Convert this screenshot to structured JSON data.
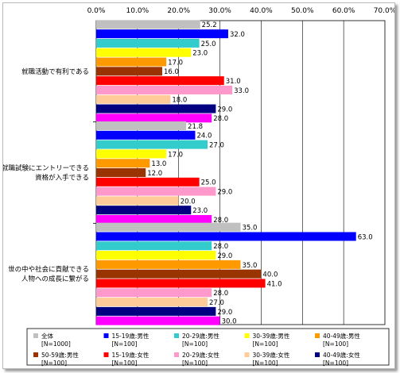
{
  "chart_data": {
    "type": "bar",
    "orientation": "horizontal",
    "xlim": [
      0,
      70
    ],
    "x_ticks": [
      "0.0%",
      "10.0%",
      "20.0%",
      "30.0%",
      "40.0%",
      "50.0%",
      "60.0%",
      "70.0%"
    ],
    "grid": true,
    "legend_position": "bottom",
    "categories": [
      {
        "label_lines": [
          "就職活動で有利である"
        ]
      },
      {
        "label_lines": [
          "就職試験にエントリーできる",
          "資格が入手できる"
        ]
      },
      {
        "label_lines": [
          "世の中や社会に貢献できる",
          "人物への成長に繋がる"
        ]
      }
    ],
    "series": [
      {
        "name": "全体",
        "n": "[N=1000]",
        "color": "#c0c0c0",
        "values": [
          25.2,
          21.8,
          35.0
        ]
      },
      {
        "name": "15-19歳:男性",
        "n": "[N=100]",
        "color": "#0000ff",
        "values": [
          32.0,
          24.0,
          63.0
        ]
      },
      {
        "name": "20-29歳:男性",
        "n": "[N=100]",
        "color": "#33cccc",
        "values": [
          25.0,
          27.0,
          28.0
        ]
      },
      {
        "name": "30-39歳:男性",
        "n": "[N=100]",
        "color": "#ffff00",
        "values": [
          23.0,
          17.0,
          29.0
        ]
      },
      {
        "name": "40-49歳:男性",
        "n": "[N=100]",
        "color": "#ff9900",
        "values": [
          17.0,
          13.0,
          35.0
        ]
      },
      {
        "name": "50-59歳:男性",
        "n": "[N=100]",
        "color": "#993300",
        "values": [
          16.0,
          12.0,
          40.0
        ]
      },
      {
        "name": "15-19歳:女性",
        "n": "[N=100]",
        "color": "#ff0000",
        "values": [
          31.0,
          25.0,
          41.0
        ]
      },
      {
        "name": "20-29歳:女性",
        "n": "[N=100]",
        "color": "#ff99cc",
        "values": [
          33.0,
          29.0,
          28.0
        ]
      },
      {
        "name": "30-39歳:女性",
        "n": "[N=100]",
        "color": "#ffcc99",
        "values": [
          18.0,
          20.0,
          27.0
        ]
      },
      {
        "name": "40-49歳:女性",
        "n": "[N=100]",
        "color": "#000080",
        "values": [
          29.0,
          23.0,
          29.0
        ]
      },
      {
        "name": "50-59歳:女性",
        "n": "[N=100]",
        "color": "#ff00ff",
        "values": [
          28.0,
          28.0,
          30.0
        ]
      }
    ]
  }
}
